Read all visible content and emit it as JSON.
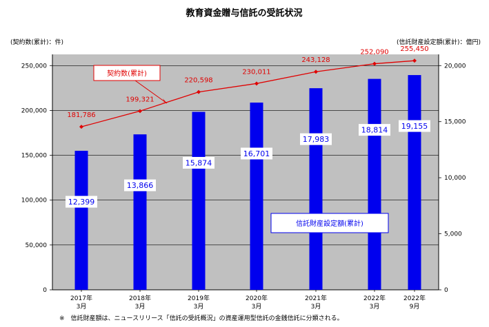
{
  "chart_data": {
    "type": "bar+line",
    "title": "教育資金贈与信託の受託状況",
    "left_axis_label": "(契約数(累計)：件)",
    "right_axis_label": "(信託財産設定額(累計)：億円)",
    "categories": [
      [
        "2017年",
        "3月"
      ],
      [
        "2018年",
        "3月"
      ],
      [
        "2019年",
        "3月"
      ],
      [
        "2020年",
        "3月"
      ],
      [
        "2021年",
        "3月"
      ],
      [
        "2022年",
        "3月"
      ],
      [
        "2022年",
        "9月"
      ]
    ],
    "left_axis": {
      "min": 0,
      "max": 250000,
      "ticks": [
        "0",
        "50,000",
        "100,000",
        "150,000",
        "200,000",
        "250,000"
      ]
    },
    "right_axis": {
      "min": 0,
      "max": 20000,
      "ticks": [
        "0",
        "5,000",
        "10,000",
        "15,000",
        "20,000"
      ]
    },
    "bars": {
      "name": "信託財産設定額(累計)",
      "axis": "right",
      "color": "#0000ee",
      "values": [
        12399,
        13866,
        15874,
        16701,
        17983,
        18814,
        19155
      ],
      "labels": [
        "12,399",
        "13,866",
        "15,874",
        "16,701",
        "17,983",
        "18,814",
        "19,155"
      ]
    },
    "line": {
      "name": "契約数(累計)",
      "axis": "left",
      "color": "#e00000",
      "values": [
        181786,
        199321,
        220598,
        230011,
        243128,
        252090,
        255450
      ],
      "labels": [
        "181,786",
        "199,321",
        "220,598",
        "230,011",
        "243,128",
        "252,090",
        "255,450"
      ]
    },
    "plot_background": "#c0c0c0"
  },
  "footnote": "※　信託財産額は、ニュースリリース「信託の受託概況」の資産運用型信託の金銭信託に分類される。"
}
